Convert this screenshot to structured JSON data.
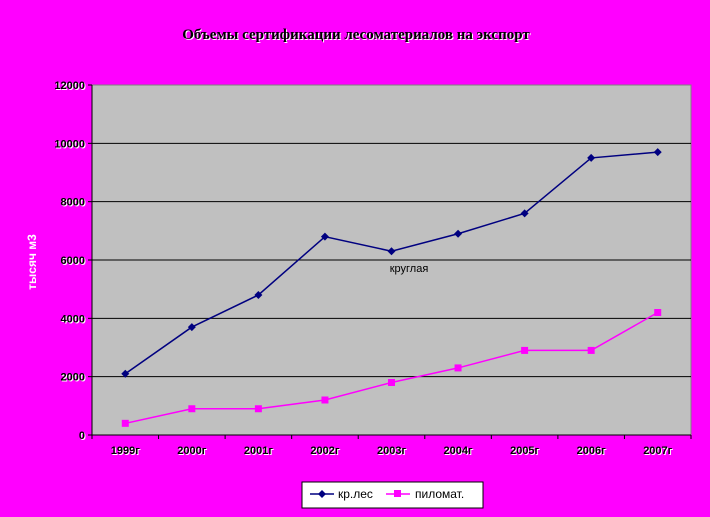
{
  "chart_data": {
    "type": "line",
    "title": "Объемы сертификации лесоматериалов на экспорт",
    "ylabel": "тысяч м3",
    "xlabel": "",
    "categories": [
      "1999г",
      "2000г",
      "2001г",
      "2002г",
      "2003г",
      "2004г",
      "2005г",
      "2006г",
      "2007г"
    ],
    "ylim": [
      0,
      12000
    ],
    "yticks": [
      0,
      2000,
      4000,
      6000,
      8000,
      10000,
      12000
    ],
    "grid": true,
    "legend_position": "bottom",
    "annotation": "круглая",
    "series": [
      {
        "name": "кр.лес",
        "color": "#000080",
        "marker": "diamond",
        "values": [
          2100,
          3700,
          4800,
          6800,
          6300,
          6900,
          7600,
          9500,
          9700
        ]
      },
      {
        "name": "пиломат.",
        "color": "#ff00ff",
        "marker": "square",
        "values": [
          400,
          900,
          900,
          1200,
          1800,
          2300,
          2900,
          2900,
          4200
        ]
      }
    ],
    "colors": {
      "background": "#ff00ff",
      "plot_area": "#c0c0c0",
      "gridline": "#000000",
      "legend_bg": "#ffffff"
    }
  }
}
